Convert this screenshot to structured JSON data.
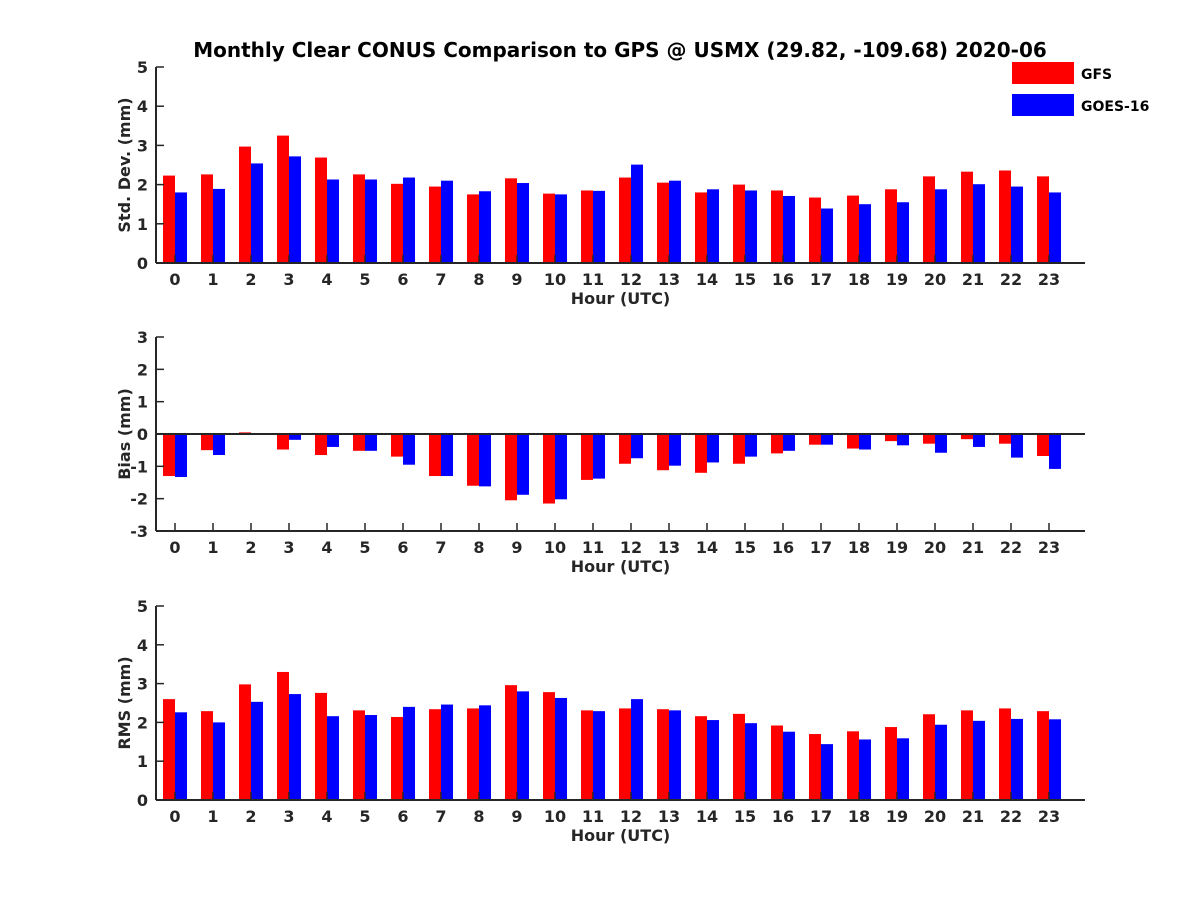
{
  "title": "Monthly Clear CONUS Comparison to GPS @ USMX (29.82, -109.68) 2020-06",
  "legend": {
    "placement": "top-right",
    "items": [
      {
        "name": "GFS",
        "color": "#ff0000"
      },
      {
        "name": "GOES-16",
        "color": "#0000ff"
      }
    ]
  },
  "chart_data": [
    {
      "type": "bar",
      "xlabel": "Hour (UTC)",
      "ylabel": "Std. Dev. (mm)",
      "ylim": [
        0,
        5
      ],
      "yticks": [
        0,
        1,
        2,
        3,
        4,
        5
      ],
      "categories": [
        "0",
        "1",
        "2",
        "3",
        "4",
        "5",
        "6",
        "7",
        "8",
        "9",
        "10",
        "11",
        "12",
        "13",
        "14",
        "15",
        "16",
        "17",
        "18",
        "19",
        "20",
        "21",
        "22",
        "23"
      ],
      "series": [
        {
          "name": "GFS",
          "color": "#ff0000",
          "values": [
            2.23,
            2.26,
            2.97,
            3.25,
            2.69,
            2.26,
            2.02,
            1.95,
            1.75,
            2.16,
            1.77,
            1.85,
            2.18,
            2.05,
            1.8,
            2.0,
            1.85,
            1.67,
            1.72,
            1.88,
            2.21,
            2.33,
            2.36,
            2.21
          ]
        },
        {
          "name": "GOES-16",
          "color": "#0000ff",
          "values": [
            1.8,
            1.89,
            2.54,
            2.72,
            2.13,
            2.13,
            2.18,
            2.1,
            1.83,
            2.04,
            1.75,
            1.84,
            2.51,
            2.1,
            1.88,
            1.85,
            1.71,
            1.39,
            1.5,
            1.55,
            1.88,
            2.01,
            1.95,
            1.8
          ]
        }
      ]
    },
    {
      "type": "bar",
      "xlabel": "Hour (UTC)",
      "ylabel": "Bias (mm)",
      "ylim": [
        -3,
        3
      ],
      "yticks": [
        -3,
        -2,
        -1,
        0,
        1,
        2,
        3
      ],
      "categories": [
        "0",
        "1",
        "2",
        "3",
        "4",
        "5",
        "6",
        "7",
        "8",
        "9",
        "10",
        "11",
        "12",
        "13",
        "14",
        "15",
        "16",
        "17",
        "18",
        "19",
        "20",
        "21",
        "22",
        "23"
      ],
      "series": [
        {
          "name": "GFS",
          "color": "#ff0000",
          "values": [
            -1.3,
            -0.5,
            0.05,
            -0.48,
            -0.65,
            -0.52,
            -0.7,
            -1.3,
            -1.6,
            -2.05,
            -2.15,
            -1.42,
            -0.92,
            -1.12,
            -1.2,
            -0.92,
            -0.6,
            -0.33,
            -0.45,
            -0.22,
            -0.3,
            -0.16,
            -0.3,
            -0.68
          ]
        },
        {
          "name": "GOES-16",
          "color": "#0000ff",
          "values": [
            -1.33,
            -0.65,
            0.0,
            -0.18,
            -0.4,
            -0.52,
            -0.95,
            -1.3,
            -1.62,
            -1.88,
            -2.02,
            -1.38,
            -0.75,
            -0.98,
            -0.88,
            -0.7,
            -0.52,
            -0.33,
            -0.48,
            -0.35,
            -0.58,
            -0.4,
            -0.73,
            -1.08
          ]
        }
      ]
    },
    {
      "type": "bar",
      "xlabel": "Hour (UTC)",
      "ylabel": "RMS (mm)",
      "ylim": [
        0,
        5
      ],
      "yticks": [
        0,
        1,
        2,
        3,
        4,
        5
      ],
      "categories": [
        "0",
        "1",
        "2",
        "3",
        "4",
        "5",
        "6",
        "7",
        "8",
        "9",
        "10",
        "11",
        "12",
        "13",
        "14",
        "15",
        "16",
        "17",
        "18",
        "19",
        "20",
        "21",
        "22",
        "23"
      ],
      "series": [
        {
          "name": "GFS",
          "color": "#ff0000",
          "values": [
            2.6,
            2.29,
            2.98,
            3.3,
            2.76,
            2.31,
            2.14,
            2.34,
            2.36,
            2.96,
            2.78,
            2.31,
            2.36,
            2.34,
            2.16,
            2.22,
            1.92,
            1.7,
            1.77,
            1.88,
            2.21,
            2.31,
            2.36,
            2.29
          ]
        },
        {
          "name": "GOES-16",
          "color": "#0000ff",
          "values": [
            2.26,
            2.0,
            2.53,
            2.73,
            2.16,
            2.19,
            2.4,
            2.46,
            2.44,
            2.8,
            2.63,
            2.29,
            2.6,
            2.31,
            2.06,
            1.98,
            1.76,
            1.44,
            1.56,
            1.59,
            1.94,
            2.04,
            2.09,
            2.08
          ]
        }
      ]
    }
  ]
}
